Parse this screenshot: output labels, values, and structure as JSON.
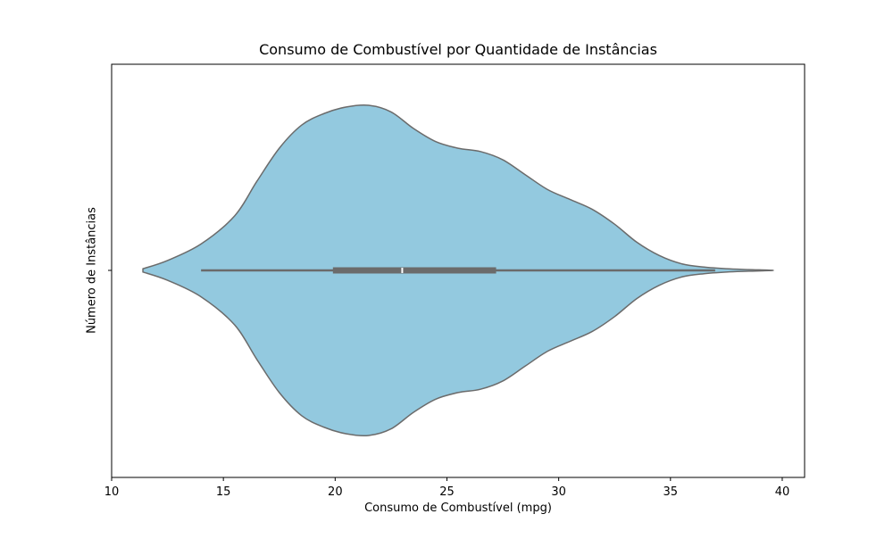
{
  "chart_data": {
    "type": "violin",
    "title": "Consumo de Combustível por Quantidade de Instâncias",
    "xlabel": "Consumo de Combustível (mpg)",
    "ylabel": "Número de Instâncias",
    "xlim": [
      10,
      41
    ],
    "xticks": [
      10,
      15,
      20,
      25,
      30,
      35,
      40
    ],
    "grid": false,
    "orientation": "horizontal",
    "fill_color": "#93c9df",
    "edge_color": "#6b6b6b",
    "box_color": "#6b6b6b",
    "density_profile": {
      "x": [
        11.4,
        12.5,
        14.0,
        15.5,
        16.5,
        17.5,
        18.5,
        19.5,
        20.5,
        21.5,
        22.5,
        23.5,
        24.5,
        25.5,
        26.5,
        27.5,
        28.5,
        29.5,
        30.5,
        31.5,
        32.5,
        33.5,
        34.5,
        35.5,
        36.5,
        37.5,
        38.5,
        39.6
      ],
      "half_width": [
        0.01,
        0.06,
        0.16,
        0.33,
        0.54,
        0.74,
        0.88,
        0.95,
        0.99,
        1.0,
        0.96,
        0.86,
        0.78,
        0.74,
        0.72,
        0.67,
        0.58,
        0.49,
        0.43,
        0.37,
        0.28,
        0.17,
        0.09,
        0.04,
        0.02,
        0.01,
        0.005,
        0.0
      ]
    },
    "box": {
      "whisker_low": 14.0,
      "q1": 19.9,
      "median": 23.0,
      "q3": 27.2,
      "whisker_high": 37.0
    }
  }
}
